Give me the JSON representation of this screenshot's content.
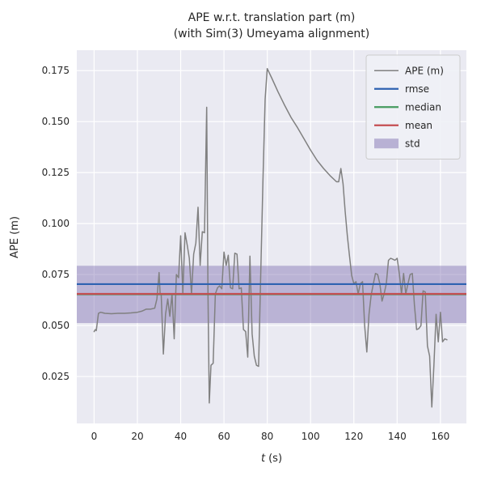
{
  "figure": {
    "title_line1": "APE w.r.t. translation part (m)",
    "title_line2": "(with Sim(3) Umeyama alignment)",
    "xlabel_var": "t",
    "xlabel_unit": "(s)",
    "ylabel": "APE (m)"
  },
  "chart_data": {
    "type": "line",
    "title": "APE w.r.t. translation part (m)\n(with Sim(3) Umeyama alignment)",
    "xlabel": "t (s)",
    "ylabel": "APE (m)",
    "xlim": [
      -8,
      172
    ],
    "ylim": [
      0.002,
      0.185
    ],
    "grid": true,
    "legend_position": "upper right",
    "x_ticks": [
      0,
      20,
      40,
      60,
      80,
      100,
      120,
      140,
      160
    ],
    "y_ticks": [
      {
        "value": 0.025,
        "label": "0.025"
      },
      {
        "value": 0.05,
        "label": "0.050"
      },
      {
        "value": 0.075,
        "label": "0.075"
      },
      {
        "value": 0.1,
        "label": "0.100"
      },
      {
        "value": 0.125,
        "label": "0.125"
      },
      {
        "value": 0.15,
        "label": "0.150"
      },
      {
        "value": 0.175,
        "label": "0.175"
      }
    ],
    "stats": {
      "rmse": 0.0703,
      "median": 0.0653,
      "mean": 0.0655,
      "std_band": [
        0.0512,
        0.0793
      ]
    },
    "series": [
      {
        "name": "APE (m)",
        "points": [
          [
            0,
            0.047
          ],
          [
            0.5,
            0.048
          ],
          [
            1,
            0.0475
          ],
          [
            2,
            0.056
          ],
          [
            3,
            0.0565
          ],
          [
            5,
            0.056
          ],
          [
            8,
            0.0558
          ],
          [
            11,
            0.056
          ],
          [
            14,
            0.056
          ],
          [
            17,
            0.0562
          ],
          [
            20,
            0.0565
          ],
          [
            22,
            0.057
          ],
          [
            23,
            0.0575
          ],
          [
            24,
            0.058
          ],
          [
            26,
            0.058
          ],
          [
            28,
            0.0585
          ],
          [
            29,
            0.063
          ],
          [
            30,
            0.076
          ],
          [
            30.5,
            0.0655
          ],
          [
            31,
            0.0655
          ],
          [
            32,
            0.036
          ],
          [
            33,
            0.0555
          ],
          [
            34,
            0.063
          ],
          [
            35,
            0.0545
          ],
          [
            36,
            0.0655
          ],
          [
            37,
            0.0435
          ],
          [
            38,
            0.075
          ],
          [
            39,
            0.0735
          ],
          [
            40,
            0.094
          ],
          [
            41,
            0.066
          ],
          [
            42,
            0.0955
          ],
          [
            43,
            0.0895
          ],
          [
            44,
            0.083
          ],
          [
            45,
            0.0655
          ],
          [
            46,
            0.085
          ],
          [
            47,
            0.0905
          ],
          [
            48,
            0.108
          ],
          [
            49,
            0.0795
          ],
          [
            50,
            0.096
          ],
          [
            51,
            0.0955
          ],
          [
            52,
            0.157
          ],
          [
            52.6,
            0.0655
          ],
          [
            53.2,
            0.012
          ],
          [
            54,
            0.0305
          ],
          [
            55,
            0.0315
          ],
          [
            56,
            0.0655
          ],
          [
            57,
            0.0685
          ],
          [
            58,
            0.0695
          ],
          [
            59,
            0.068
          ],
          [
            60,
            0.086
          ],
          [
            61,
            0.0795
          ],
          [
            62,
            0.0845
          ],
          [
            63,
            0.0685
          ],
          [
            64,
            0.068
          ],
          [
            65,
            0.0855
          ],
          [
            66,
            0.085
          ],
          [
            67,
            0.068
          ],
          [
            68,
            0.0685
          ],
          [
            69,
            0.048
          ],
          [
            70,
            0.047
          ],
          [
            71,
            0.0345
          ],
          [
            72,
            0.084
          ],
          [
            73,
            0.046
          ],
          [
            74,
            0.035
          ],
          [
            75,
            0.0305
          ],
          [
            76,
            0.03
          ],
          [
            77,
            0.076
          ],
          [
            78,
            0.121
          ],
          [
            79,
            0.161
          ],
          [
            80,
            0.176
          ],
          [
            82,
            0.1715
          ],
          [
            85,
            0.1645
          ],
          [
            88,
            0.158
          ],
          [
            91,
            0.152
          ],
          [
            94,
            0.147
          ],
          [
            97,
            0.1415
          ],
          [
            100,
            0.136
          ],
          [
            103,
            0.131
          ],
          [
            106,
            0.127
          ],
          [
            109,
            0.1235
          ],
          [
            112,
            0.1205
          ],
          [
            113,
            0.1205
          ],
          [
            114,
            0.127
          ],
          [
            115,
            0.1195
          ],
          [
            116,
            0.106
          ],
          [
            117,
            0.094
          ],
          [
            118,
            0.084
          ],
          [
            119,
            0.0745
          ],
          [
            120,
            0.0705
          ],
          [
            121,
            0.0715
          ],
          [
            122,
            0.0655
          ],
          [
            123,
            0.0705
          ],
          [
            124,
            0.0715
          ],
          [
            125,
            0.05
          ],
          [
            126,
            0.037
          ],
          [
            127,
            0.0555
          ],
          [
            128,
            0.065
          ],
          [
            129,
            0.0705
          ],
          [
            130,
            0.0755
          ],
          [
            131,
            0.075
          ],
          [
            132,
            0.0705
          ],
          [
            133,
            0.062
          ],
          [
            134,
            0.0655
          ],
          [
            135,
            0.0705
          ],
          [
            136,
            0.082
          ],
          [
            137,
            0.083
          ],
          [
            138,
            0.0825
          ],
          [
            139,
            0.082
          ],
          [
            140,
            0.083
          ],
          [
            141,
            0.0755
          ],
          [
            142,
            0.0655
          ],
          [
            143,
            0.0755
          ],
          [
            144,
            0.0655
          ],
          [
            145,
            0.0705
          ],
          [
            146,
            0.075
          ],
          [
            147,
            0.0755
          ],
          [
            148,
            0.06
          ],
          [
            149,
            0.048
          ],
          [
            150,
            0.0485
          ],
          [
            151,
            0.05
          ],
          [
            152,
            0.067
          ],
          [
            153,
            0.0665
          ],
          [
            154,
            0.04
          ],
          [
            155,
            0.035
          ],
          [
            156,
            0.01
          ],
          [
            157,
            0.0305
          ],
          [
            158,
            0.0555
          ],
          [
            159,
            0.042
          ],
          [
            160,
            0.0565
          ],
          [
            161,
            0.042
          ],
          [
            162,
            0.0435
          ],
          [
            163,
            0.043
          ]
        ]
      }
    ],
    "legend": [
      {
        "label": "APE (m)",
        "type": "line",
        "color": "#808080"
      },
      {
        "label": "rmse",
        "type": "line",
        "color": "#2e62b1"
      },
      {
        "label": "median",
        "type": "line",
        "color": "#459b5f"
      },
      {
        "label": "mean",
        "type": "line",
        "color": "#c44e52"
      },
      {
        "label": "std",
        "type": "band",
        "color": "#8172b2"
      }
    ],
    "colors": {
      "ape_line": "#808080",
      "rmse_line": "#2e62b1",
      "median_line": "#459b5f",
      "mean_line": "#c44e52",
      "std_fill": "#8172b2",
      "axes_bg": "#eaeaf2",
      "grid": "#ffffff",
      "text": "#262626",
      "legend_bg": "#f0f1f6",
      "legend_border": "#cccccc"
    }
  }
}
